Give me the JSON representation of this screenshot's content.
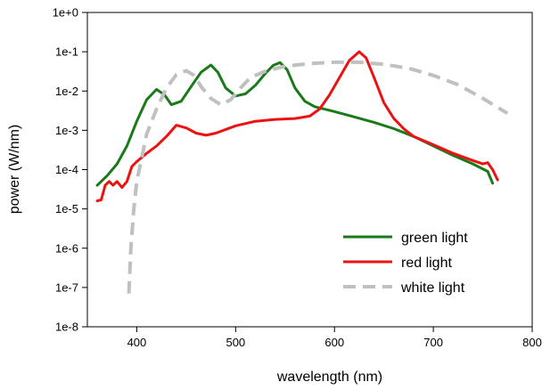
{
  "chart_data": {
    "type": "line",
    "title": "",
    "xlabel": "wavelength (nm)",
    "ylabel": "power (W/nm)",
    "xlim": [
      350,
      800
    ],
    "ylim": [
      "1e-8",
      "1e+0"
    ],
    "yscale": "log",
    "x_ticks": [
      400,
      500,
      600,
      700,
      800
    ],
    "x_tick_labels": [
      "400",
      "500",
      "600",
      "700",
      "800"
    ],
    "y_ticks": [
      1e-08,
      1e-07,
      1e-06,
      1e-05,
      0.0001,
      0.001,
      0.01,
      0.1,
      1
    ],
    "y_tick_labels": [
      "1e-8",
      "1e-7",
      "1e-6",
      "1e-5",
      "1e-4",
      "1e-3",
      "1e-2",
      "1e-1",
      "1e+0"
    ],
    "grid": false,
    "legend_position": "bottom-right",
    "series": [
      {
        "name": "green light",
        "color": "#1a7a1a",
        "dash": "solid",
        "points": [
          [
            360,
            4e-05
          ],
          [
            370,
            7e-05
          ],
          [
            380,
            0.00014
          ],
          [
            390,
            0.0004
          ],
          [
            400,
            0.0017
          ],
          [
            410,
            0.006
          ],
          [
            420,
            0.011
          ],
          [
            428,
            0.008
          ],
          [
            435,
            0.0045
          ],
          [
            445,
            0.0055
          ],
          [
            455,
            0.013
          ],
          [
            465,
            0.03
          ],
          [
            475,
            0.046
          ],
          [
            482,
            0.03
          ],
          [
            490,
            0.012
          ],
          [
            500,
            0.0075
          ],
          [
            510,
            0.0085
          ],
          [
            520,
            0.014
          ],
          [
            530,
            0.028
          ],
          [
            538,
            0.045
          ],
          [
            545,
            0.053
          ],
          [
            552,
            0.035
          ],
          [
            560,
            0.012
          ],
          [
            570,
            0.0055
          ],
          [
            580,
            0.004
          ],
          [
            600,
            0.003
          ],
          [
            620,
            0.0022
          ],
          [
            640,
            0.0016
          ],
          [
            660,
            0.0011
          ],
          [
            680,
            0.0007
          ],
          [
            700,
            0.0004
          ],
          [
            720,
            0.00023
          ],
          [
            740,
            0.00014
          ],
          [
            755,
            9e-05
          ],
          [
            760,
            4.5e-05
          ]
        ]
      },
      {
        "name": "red light",
        "color": "#ee1111",
        "dash": "solid",
        "points": [
          [
            360,
            1.6e-05
          ],
          [
            364,
            1.7e-05
          ],
          [
            368,
            4e-05
          ],
          [
            372,
            5e-05
          ],
          [
            376,
            4e-05
          ],
          [
            380,
            5e-05
          ],
          [
            385,
            3.5e-05
          ],
          [
            390,
            5e-05
          ],
          [
            395,
            0.00012
          ],
          [
            400,
            0.00016
          ],
          [
            410,
            0.00026
          ],
          [
            420,
            0.0004
          ],
          [
            430,
            0.0007
          ],
          [
            440,
            0.00135
          ],
          [
            450,
            0.00115
          ],
          [
            460,
            0.00085
          ],
          [
            470,
            0.00075
          ],
          [
            480,
            0.00085
          ],
          [
            500,
            0.0013
          ],
          [
            520,
            0.0017
          ],
          [
            540,
            0.0019
          ],
          [
            560,
            0.002
          ],
          [
            575,
            0.0023
          ],
          [
            585,
            0.0035
          ],
          [
            595,
            0.008
          ],
          [
            605,
            0.022
          ],
          [
            615,
            0.06
          ],
          [
            625,
            0.1
          ],
          [
            632,
            0.07
          ],
          [
            640,
            0.022
          ],
          [
            650,
            0.005
          ],
          [
            660,
            0.002
          ],
          [
            670,
            0.0011
          ],
          [
            680,
            0.0007
          ],
          [
            700,
            0.00043
          ],
          [
            720,
            0.00026
          ],
          [
            740,
            0.00017
          ],
          [
            750,
            0.00014
          ],
          [
            755,
            0.00015
          ],
          [
            760,
            0.0001
          ],
          [
            765,
            5.5e-05
          ]
        ]
      },
      {
        "name": "white light",
        "color": "#c0c0c0",
        "dash": "dashed",
        "points": [
          [
            392,
            7e-08
          ],
          [
            394,
            1e-06
          ],
          [
            397,
            1e-05
          ],
          [
            400,
            5e-05
          ],
          [
            405,
            0.0002
          ],
          [
            410,
            0.0008
          ],
          [
            420,
            0.0035
          ],
          [
            430,
            0.012
          ],
          [
            440,
            0.026
          ],
          [
            450,
            0.033
          ],
          [
            458,
            0.025
          ],
          [
            465,
            0.013
          ],
          [
            475,
            0.0065
          ],
          [
            485,
            0.0045
          ],
          [
            495,
            0.006
          ],
          [
            505,
            0.012
          ],
          [
            515,
            0.022
          ],
          [
            530,
            0.032
          ],
          [
            550,
            0.043
          ],
          [
            575,
            0.05
          ],
          [
            600,
            0.054
          ],
          [
            625,
            0.054
          ],
          [
            650,
            0.048
          ],
          [
            675,
            0.038
          ],
          [
            700,
            0.025
          ],
          [
            725,
            0.0145
          ],
          [
            750,
            0.0065
          ],
          [
            775,
            0.0027
          ]
        ]
      }
    ]
  }
}
